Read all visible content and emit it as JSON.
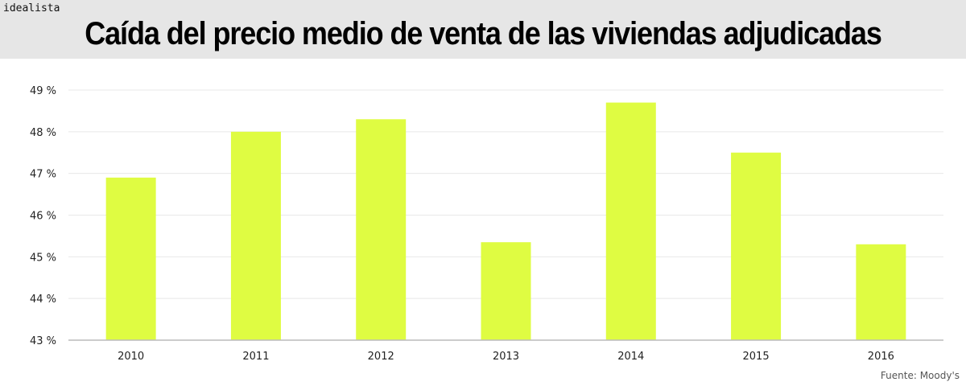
{
  "brand": "idealista",
  "chart_data": {
    "type": "bar",
    "title": "Caída del precio medio de venta de las viviendas adjudicadas",
    "categories": [
      "2010",
      "2011",
      "2012",
      "2013",
      "2014",
      "2015",
      "2016"
    ],
    "values": [
      46.9,
      48.0,
      48.3,
      45.35,
      48.7,
      47.5,
      45.3
    ],
    "ylim": [
      43,
      49
    ],
    "yticks": [
      "43 %",
      "44 %",
      "45 %",
      "46 %",
      "47 %",
      "48 %",
      "49 %"
    ],
    "xlabel": "",
    "ylabel": "",
    "grid": true,
    "bar_color": "#dffc42",
    "source": "Fuente: Moody's"
  }
}
